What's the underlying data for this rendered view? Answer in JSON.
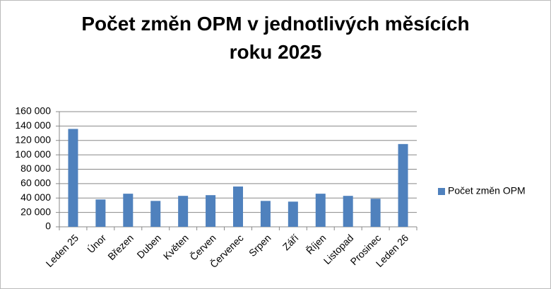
{
  "chart_data": {
    "type": "bar",
    "title": "Počet změn OPM v jednotlivých měsících roku 2025",
    "categories": [
      "Leden 25",
      "Únor",
      "Březen",
      "Duben",
      "Květen",
      "Červen",
      "Červenec",
      "Srpen",
      "Září",
      "Říjen",
      "Listopad",
      "Prosinec",
      "Leden 26"
    ],
    "series": [
      {
        "name": "Počet změn OPM",
        "color": "#4f81bd",
        "values": [
          136000,
          38000,
          46000,
          36000,
          43000,
          44000,
          56000,
          36000,
          35000,
          46000,
          43000,
          39000,
          115000
        ]
      }
    ],
    "ylim": [
      0,
      160000
    ],
    "yticks": [
      0,
      {
        "value": 20000,
        "label": "20 000"
      },
      {
        "value": 40000,
        "label": "40 000"
      },
      {
        "value": 60000,
        "label": "60 000"
      },
      {
        "value": 80000,
        "label": "80 000"
      },
      {
        "value": 100000,
        "label": "100 000"
      },
      {
        "value": 120000,
        "label": "120 000"
      },
      {
        "value": 140000,
        "label": "140 000"
      },
      {
        "value": 160000,
        "label": "160 000"
      }
    ],
    "grid": true,
    "legend": "right"
  }
}
